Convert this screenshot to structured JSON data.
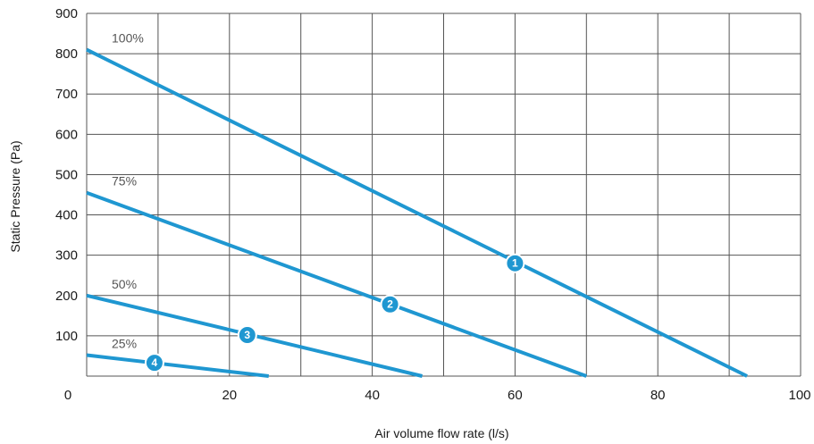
{
  "chart_data": {
    "type": "line",
    "xlabel": "Air volume flow rate (l/s)",
    "ylabel": "Static Pressure (Pa)",
    "xlim": [
      0,
      100
    ],
    "ylim": [
      0,
      900
    ],
    "xticks": [
      0,
      20,
      40,
      60,
      80,
      100
    ],
    "yticks": [
      100,
      200,
      300,
      400,
      500,
      600,
      700,
      800,
      900
    ],
    "x_tick_labels": [
      "0",
      "20",
      "40",
      "60",
      "80",
      100
    ],
    "y_tick_labels": [
      "100",
      "200",
      "300",
      "400",
      "500",
      "600",
      "700",
      "800",
      "900"
    ],
    "grid": true,
    "line_color": "#1f97d1",
    "grid_color": "#555555",
    "series": [
      {
        "name": "100%",
        "x": [
          0,
          92.5
        ],
        "y": [
          810,
          0
        ],
        "marker": {
          "label": "1",
          "x": 60,
          "y": 280
        }
      },
      {
        "name": "75%",
        "x": [
          0,
          70
        ],
        "y": [
          455,
          0
        ],
        "marker": {
          "label": "2",
          "x": 42.5,
          "y": 178
        }
      },
      {
        "name": "50%",
        "x": [
          0,
          47
        ],
        "y": [
          200,
          0
        ],
        "marker": {
          "label": "3",
          "x": 22.5,
          "y": 102
        }
      },
      {
        "name": "25%",
        "x": [
          0,
          25.5
        ],
        "y": [
          52,
          0
        ],
        "marker": {
          "label": "4",
          "x": 9.5,
          "y": 33
        }
      }
    ]
  }
}
